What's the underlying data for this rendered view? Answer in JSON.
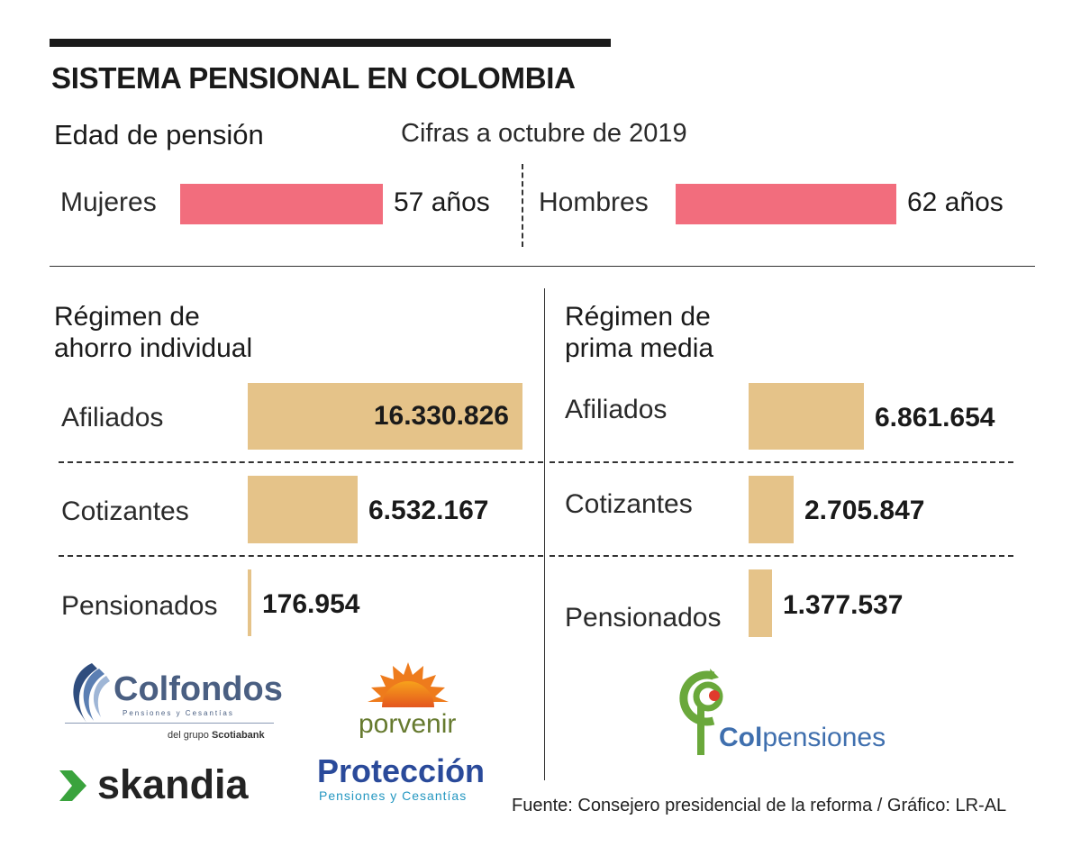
{
  "title": "SISTEMA PENSIONAL EN COLOMBIA",
  "subtitle": "Edad de pensión",
  "date_note": "Cifras a octubre de 2019",
  "source": "Fuente: Consejero presidencial de la reforma / Gráfico: LR-AL",
  "colors": {
    "age_bar": "#f26d7d",
    "count_bar": "#e5c389"
  },
  "chart_data": [
    {
      "type": "bar",
      "title": "Edad de pensión",
      "categories": [
        "Mujeres",
        "Hombres"
      ],
      "values": [
        57,
        62
      ],
      "value_labels": [
        "57 años",
        "62 años"
      ],
      "unit": "años"
    },
    {
      "type": "bar",
      "title_lines": [
        "Régimen de",
        "ahorro individual"
      ],
      "categories": [
        "Afiliados",
        "Cotizantes",
        "Pensionados"
      ],
      "values": [
        16330826,
        6532167,
        176954
      ],
      "value_labels": [
        "16.330.826",
        "6.532.167",
        "176.954"
      ],
      "scale_max": 16330826
    },
    {
      "type": "bar",
      "title_lines": [
        "Régimen de",
        "prima media"
      ],
      "categories": [
        "Afiliados",
        "Cotizantes",
        "Pensionados"
      ],
      "values": [
        6861654,
        2705847,
        1377537
      ],
      "value_labels": [
        "6.861.654",
        "2.705.847",
        "1.377.537"
      ],
      "scale_max": 6861654
    }
  ],
  "logos": {
    "colfondos": {
      "name": "Colfondos",
      "tagline": "Pensiones y Cesantías",
      "group_prefix": "del grupo",
      "group": "Scotiabank"
    },
    "porvenir": {
      "name": "porvenir"
    },
    "skandia": {
      "name": "skandia"
    },
    "proteccion": {
      "name": "Protección",
      "tagline": "Pensiones y Cesantías"
    },
    "colpensiones": {
      "prefix": "Col",
      "suffix": "pensiones"
    }
  }
}
